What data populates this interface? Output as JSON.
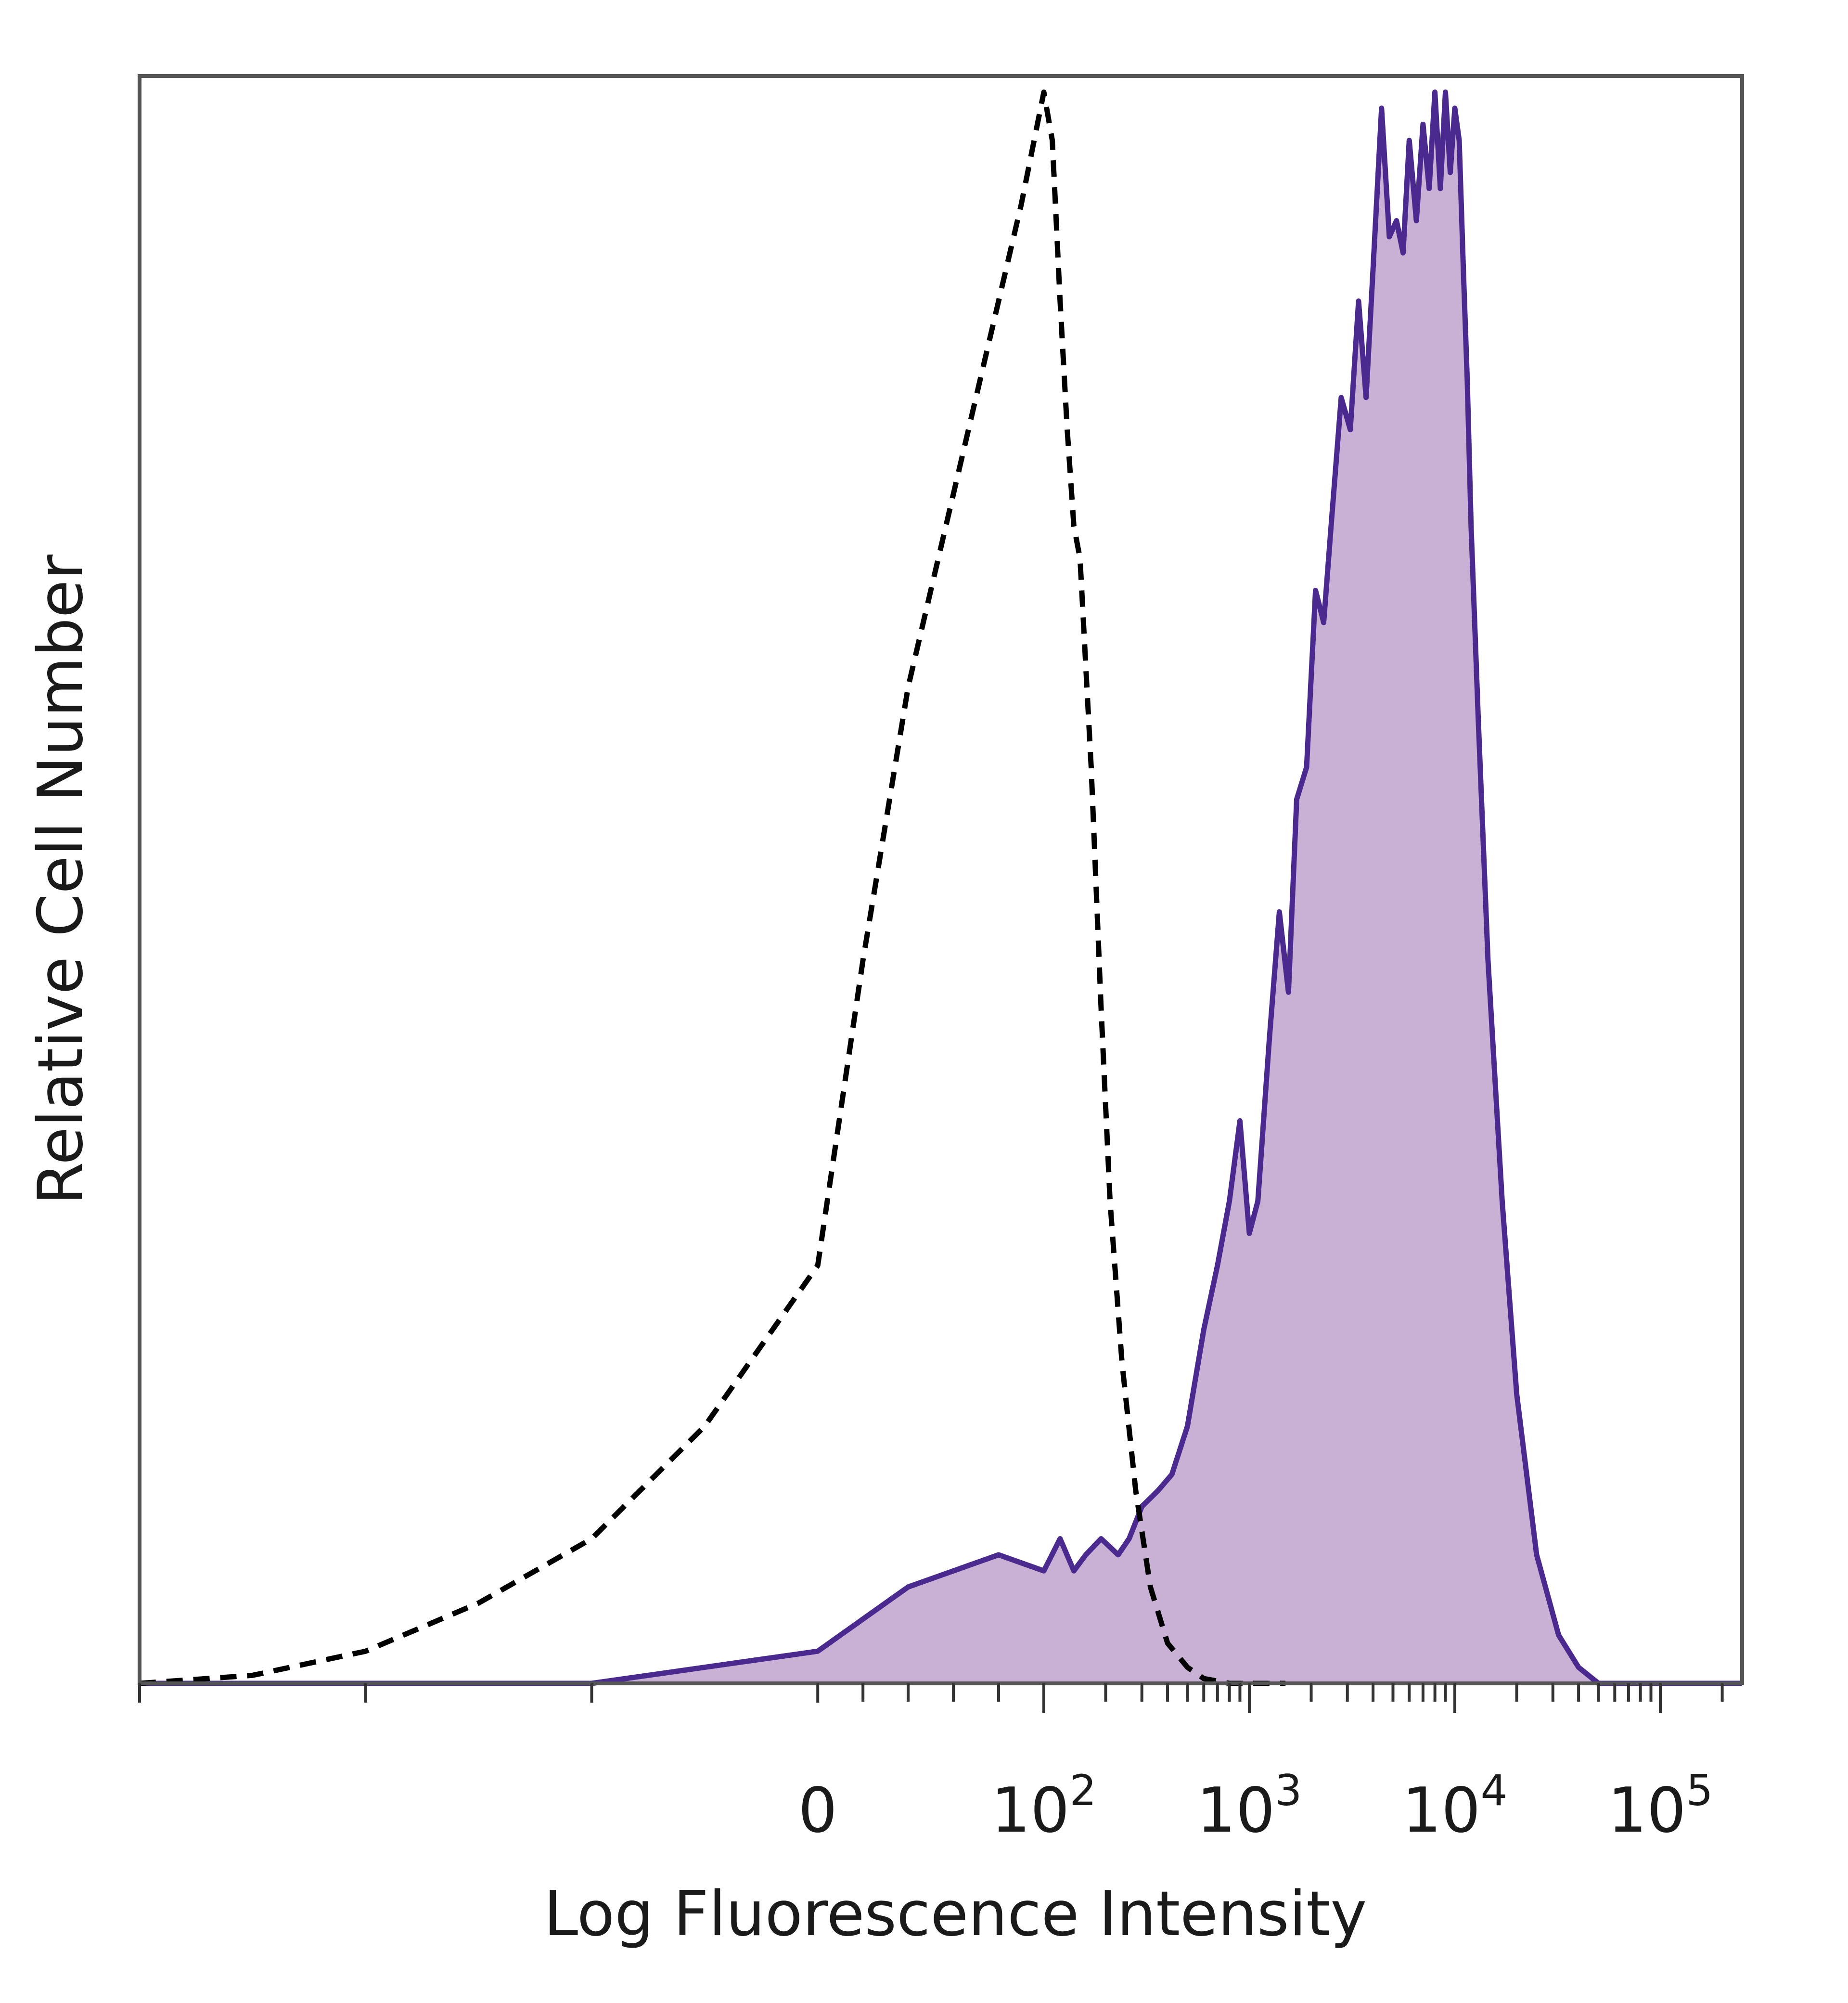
{
  "chart_data": {
    "type": "area",
    "title": "",
    "xlabel": "Log Fluorescence Intensity",
    "ylabel": "Relative Cell Number",
    "x_scale": "biexponential",
    "xlim": [
      -300,
      250000
    ],
    "ylim": [
      0,
      100
    ],
    "grid": false,
    "legend": "none",
    "x_tick_labels": [
      {
        "value": 0,
        "base": "0",
        "exp": ""
      },
      {
        "value": 100,
        "base": "10",
        "exp": "2"
      },
      {
        "value": 1000,
        "base": "10",
        "exp": "3"
      },
      {
        "value": 10000,
        "base": "10",
        "exp": "4"
      },
      {
        "value": 100000,
        "base": "10",
        "exp": "5"
      }
    ],
    "colors": {
      "stained_line": "#4b2a8f",
      "stained_fill": "#c9b1d6",
      "control_line": "#000000",
      "frame": "#555555"
    },
    "series": [
      {
        "style": "dashed",
        "x": [
          -300,
          -250,
          -200,
          -150,
          -100,
          -50,
          0,
          20,
          40,
          60,
          70,
          80,
          90,
          100,
          110,
          120,
          130,
          140,
          150,
          170,
          190,
          210,
          240,
          280,
          330,
          400,
          500,
          600,
          800,
          1000,
          1500
        ],
        "y": [
          0,
          0.5,
          2,
          5,
          9,
          16,
          26,
          45,
          62,
          74,
          80,
          86,
          92,
          99,
          96,
          86,
          78,
          72,
          70,
          57,
          42,
          30,
          20,
          12,
          6,
          2.5,
          1,
          0.3,
          0,
          0,
          0
        ]
      },
      {
        "style": "filled",
        "x": [
          -300,
          -100,
          0,
          20,
          40,
          60,
          80,
          100,
          120,
          140,
          160,
          190,
          230,
          260,
          300,
          360,
          420,
          500,
          600,
          700,
          800,
          900,
          1000,
          1100,
          1250,
          1400,
          1550,
          1700,
          1900,
          2100,
          2300,
          2500,
          2800,
          3100,
          3400,
          3700,
          4000,
          4400,
          4800,
          5200,
          5600,
          6000,
          6500,
          7000,
          7500,
          8000,
          8500,
          9000,
          9500,
          10000,
          10500,
          11000,
          11500,
          12000,
          13000,
          14500,
          17000,
          20000,
          25000,
          32000,
          40000,
          50000,
          60000,
          75000,
          90000,
          110000,
          250000
        ],
        "y": [
          0,
          0,
          2,
          4,
          6,
          7,
          8,
          7,
          9,
          7,
          8,
          9,
          8,
          9,
          11,
          12,
          13,
          16,
          22,
          26,
          30,
          35,
          28,
          30,
          40,
          48,
          43,
          55,
          57,
          68,
          66,
          72,
          80,
          78,
          86,
          80,
          88,
          98,
          90,
          91,
          89,
          96,
          91,
          97,
          93,
          99,
          93,
          99,
          94,
          98,
          96,
          88,
          81,
          72,
          60,
          45,
          30,
          18,
          8,
          3,
          1,
          0,
          0,
          0,
          0,
          0,
          0
        ]
      }
    ]
  }
}
